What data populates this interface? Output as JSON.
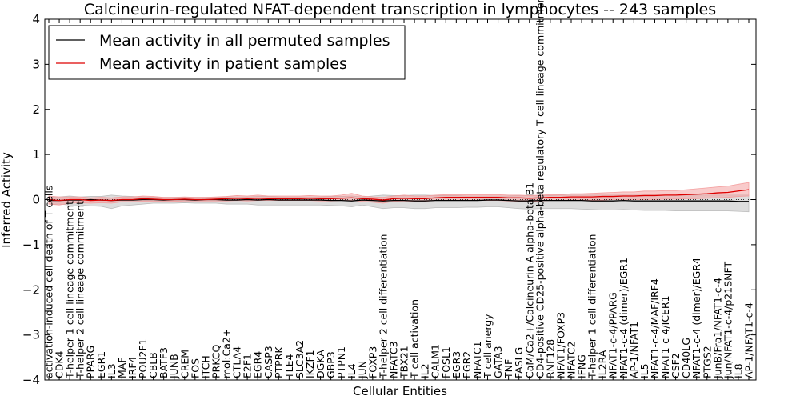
{
  "chart_data": {
    "type": "line",
    "title": "Calcineurin-regulated NFAT-dependent transcription in lymphocytes -- 243 samples",
    "xlabel": "Cellular Entities",
    "ylabel": "Inferred Activity",
    "ylim": [
      -4,
      4
    ],
    "yticks": [
      "-4",
      "-3",
      "-2",
      "-1",
      "0",
      "1",
      "2",
      "3",
      "4"
    ],
    "legend_position": "top-left",
    "grid": false,
    "categories": [
      "activation-induced cell death of T cells",
      "CDK4",
      "T-helper 1 cell lineage commitment",
      "T-helper 2 cell lineage commitment",
      "PPARG",
      "EGR1",
      "IL3",
      "MAF",
      "IRF4",
      "POU2F1",
      "CBLB",
      "BATF3",
      "JUNB",
      "CREM",
      "FOS",
      "ITCH",
      "PRKCQ",
      "mol:Ca2+",
      "CTLA4",
      "E2F1",
      "EGR4",
      "CASP3",
      "PTPRK",
      "TLE4",
      "SLC3A2",
      "IKZF1",
      "DGKA",
      "GBP3",
      "PTPN1",
      "IL4",
      "JUN",
      "FOXP3",
      "T-helper 2 cell differentiation",
      "NFATC3",
      "TBX21",
      "T cell activation",
      "IL2",
      "CALM1",
      "FOSL1",
      "EGR3",
      "EGR2",
      "NFATC1",
      "T cell anergy",
      "GATA3",
      "TNF",
      "FASLG",
      "CaM/Ca2+/Calcineurin A alpha-beta B1",
      "CD4-positive CD25-positive alpha-beta regulatory T cell lineage commitment",
      "RNF128",
      "NFAT1/FOXP3",
      "NFATC2",
      "IFNG",
      "T-helper 1 cell differentiation",
      "IL2RA",
      "NFAT1-c-4/PPARG",
      "NFAT1-c-4 (dimer)/EGR1",
      "AP-1/NFAT1",
      "IL5",
      "NFAT1-c-4/MAF/IRF4",
      "NFAT1-c-4/ICER1",
      "CSF2",
      "CD40LG",
      "NFAT1-c-4 (dimer)/EGR4",
      "PTGS2",
      "JunB/Fra1/NFAT1-c-4",
      "Jun/NFAT1-c-4/p21SNFT",
      "IL8",
      "AP-1/NFAT1-c-4"
    ],
    "series": [
      {
        "name": "Mean activity in all permuted samples",
        "color": "#000000",
        "band_color": "#bbbbbb",
        "values": [
          -0.02,
          -0.02,
          -0.01,
          -0.01,
          0.0,
          -0.01,
          -0.02,
          -0.01,
          -0.01,
          0.0,
          0.0,
          -0.01,
          0.0,
          0.0,
          -0.01,
          0.0,
          0.0,
          -0.01,
          -0.01,
          0.0,
          -0.01,
          0.0,
          -0.01,
          -0.01,
          -0.01,
          -0.01,
          -0.01,
          -0.02,
          -0.02,
          -0.03,
          -0.01,
          -0.02,
          -0.03,
          -0.02,
          -0.02,
          -0.03,
          -0.03,
          -0.02,
          -0.02,
          -0.02,
          -0.02,
          -0.02,
          -0.01,
          -0.01,
          -0.02,
          -0.03,
          -0.03,
          -0.02,
          -0.02,
          -0.02,
          -0.02,
          -0.02,
          -0.03,
          -0.03,
          -0.03,
          -0.02,
          -0.03,
          -0.03,
          -0.03,
          -0.03,
          -0.03,
          -0.03,
          -0.03,
          -0.03,
          -0.03,
          -0.03,
          -0.04,
          -0.04
        ],
        "lower": [
          -0.1,
          -0.1,
          -0.12,
          -0.12,
          -0.14,
          -0.15,
          -0.2,
          -0.14,
          -0.12,
          -0.1,
          -0.08,
          -0.08,
          -0.08,
          -0.07,
          -0.08,
          -0.08,
          -0.08,
          -0.1,
          -0.1,
          -0.1,
          -0.12,
          -0.12,
          -0.12,
          -0.12,
          -0.12,
          -0.12,
          -0.12,
          -0.13,
          -0.14,
          -0.16,
          -0.12,
          -0.16,
          -0.2,
          -0.18,
          -0.18,
          -0.2,
          -0.2,
          -0.18,
          -0.18,
          -0.18,
          -0.17,
          -0.17,
          -0.16,
          -0.16,
          -0.18,
          -0.2,
          -0.21,
          -0.2,
          -0.2,
          -0.2,
          -0.2,
          -0.21,
          -0.22,
          -0.23,
          -0.23,
          -0.22,
          -0.23,
          -0.24,
          -0.24,
          -0.24,
          -0.25,
          -0.25,
          -0.25,
          -0.25,
          -0.25,
          -0.25,
          -0.26,
          -0.27
        ],
        "upper": [
          0.06,
          0.06,
          0.08,
          0.06,
          0.07,
          0.07,
          0.1,
          0.08,
          0.07,
          0.06,
          0.05,
          0.05,
          0.05,
          0.05,
          0.05,
          0.05,
          0.05,
          0.06,
          0.06,
          0.06,
          0.07,
          0.07,
          0.06,
          0.06,
          0.06,
          0.06,
          0.06,
          0.07,
          0.07,
          0.08,
          0.06,
          0.08,
          0.1,
          0.09,
          0.09,
          0.1,
          0.1,
          0.09,
          0.09,
          0.09,
          0.08,
          0.08,
          0.08,
          0.08,
          0.08,
          0.09,
          0.09,
          0.09,
          0.09,
          0.1,
          0.1,
          0.1,
          0.1,
          0.1,
          0.1,
          0.1,
          0.1,
          0.1,
          0.1,
          0.1,
          0.1,
          0.1,
          0.1,
          0.1,
          0.1,
          0.1,
          0.1,
          0.1
        ]
      },
      {
        "name": "Mean activity in patient samples",
        "color": "#dd0000",
        "band_color": "#f4a0a0",
        "values": [
          0.0,
          -0.02,
          0.0,
          0.0,
          -0.02,
          -0.01,
          -0.02,
          0.0,
          0.0,
          0.02,
          0.01,
          0.0,
          0.0,
          0.01,
          0.0,
          0.0,
          0.01,
          0.02,
          0.03,
          0.02,
          0.03,
          0.02,
          0.02,
          0.02,
          0.02,
          0.03,
          0.02,
          0.02,
          0.03,
          0.04,
          0.02,
          0.01,
          -0.01,
          0.02,
          0.03,
          0.02,
          0.02,
          0.04,
          0.05,
          0.05,
          0.05,
          0.05,
          0.05,
          0.05,
          0.04,
          0.04,
          0.03,
          0.04,
          0.05,
          0.05,
          0.06,
          0.06,
          0.06,
          0.07,
          0.07,
          0.08,
          0.08,
          0.09,
          0.09,
          0.1,
          0.1,
          0.11,
          0.12,
          0.13,
          0.15,
          0.16,
          0.19,
          0.22
        ],
        "lower": [
          -0.1,
          -0.12,
          -0.08,
          -0.07,
          -0.08,
          -0.07,
          -0.08,
          -0.05,
          -0.05,
          -0.04,
          -0.04,
          -0.04,
          -0.04,
          -0.03,
          -0.03,
          -0.03,
          -0.03,
          -0.03,
          -0.02,
          -0.03,
          -0.02,
          -0.02,
          -0.02,
          -0.02,
          -0.02,
          -0.02,
          -0.03,
          -0.03,
          -0.02,
          -0.02,
          -0.04,
          -0.06,
          -0.08,
          -0.04,
          -0.03,
          -0.04,
          -0.04,
          -0.02,
          -0.02,
          -0.02,
          -0.02,
          -0.02,
          -0.02,
          -0.02,
          -0.03,
          -0.04,
          -0.05,
          -0.03,
          -0.02,
          -0.02,
          -0.01,
          -0.01,
          -0.01,
          -0.01,
          0.0,
          0.0,
          0.0,
          0.0,
          0.0,
          0.01,
          0.01,
          0.02,
          0.02,
          0.03,
          0.04,
          0.05,
          0.07,
          0.08
        ],
        "upper": [
          0.08,
          0.06,
          0.06,
          0.06,
          0.04,
          0.05,
          0.04,
          0.06,
          0.06,
          0.08,
          0.07,
          0.05,
          0.05,
          0.06,
          0.05,
          0.05,
          0.06,
          0.07,
          0.09,
          0.08,
          0.1,
          0.08,
          0.08,
          0.08,
          0.08,
          0.09,
          0.08,
          0.08,
          0.1,
          0.14,
          0.08,
          0.06,
          0.05,
          0.08,
          0.1,
          0.08,
          0.08,
          0.1,
          0.11,
          0.11,
          0.11,
          0.11,
          0.11,
          0.11,
          0.1,
          0.1,
          0.09,
          0.1,
          0.11,
          0.11,
          0.13,
          0.13,
          0.14,
          0.15,
          0.16,
          0.17,
          0.17,
          0.19,
          0.19,
          0.2,
          0.2,
          0.22,
          0.24,
          0.26,
          0.28,
          0.3,
          0.34,
          0.38
        ]
      }
    ]
  }
}
